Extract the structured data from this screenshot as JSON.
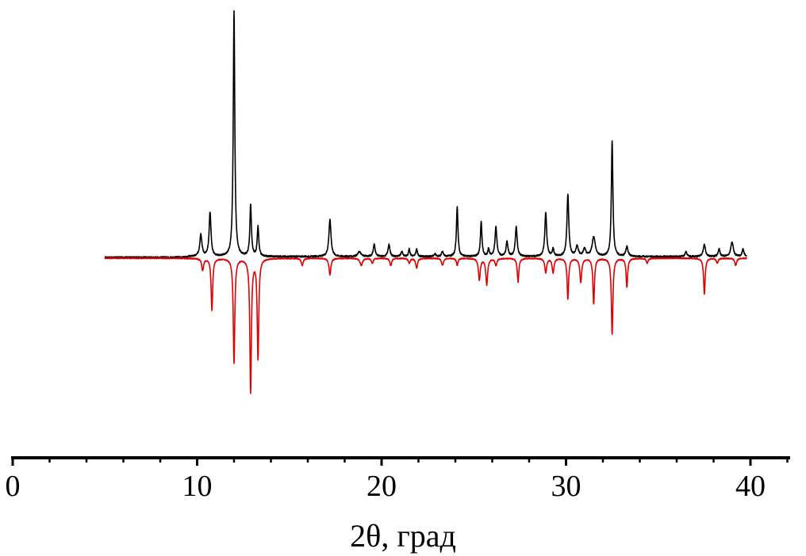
{
  "chart_data": {
    "type": "line",
    "title": "",
    "xlabel": "2θ, град",
    "ylabel": "",
    "xlim": [
      0,
      42
    ],
    "x_ticks_major": [
      0,
      10,
      20,
      30,
      40
    ],
    "x_tick_labels": [
      "0",
      "10",
      "20",
      "30",
      "40"
    ],
    "x_minor_step": 2,
    "grid": false,
    "legend": "none",
    "x_range_data": [
      5,
      39.8
    ],
    "series": [
      {
        "color": "#000000",
        "direction": "up",
        "baseline": 0.03,
        "peaks": [
          {
            "x": 10.2,
            "y": 0.09,
            "w": 0.07
          },
          {
            "x": 10.7,
            "y": 0.18,
            "w": 0.06
          },
          {
            "x": 12.0,
            "y": 1.0,
            "w": 0.05
          },
          {
            "x": 12.9,
            "y": 0.21,
            "w": 0.05
          },
          {
            "x": 13.3,
            "y": 0.12,
            "w": 0.05
          },
          {
            "x": 17.2,
            "y": 0.15,
            "w": 0.07
          },
          {
            "x": 18.8,
            "y": 0.02,
            "w": 0.1
          },
          {
            "x": 19.6,
            "y": 0.05,
            "w": 0.06
          },
          {
            "x": 20.4,
            "y": 0.05,
            "w": 0.06
          },
          {
            "x": 21.1,
            "y": 0.02,
            "w": 0.06
          },
          {
            "x": 21.5,
            "y": 0.03,
            "w": 0.05
          },
          {
            "x": 21.9,
            "y": 0.03,
            "w": 0.05
          },
          {
            "x": 22.9,
            "y": 0.01,
            "w": 0.06
          },
          {
            "x": 23.3,
            "y": 0.02,
            "w": 0.06
          },
          {
            "x": 24.1,
            "y": 0.2,
            "w": 0.05
          },
          {
            "x": 25.4,
            "y": 0.14,
            "w": 0.05
          },
          {
            "x": 25.8,
            "y": 0.03,
            "w": 0.05
          },
          {
            "x": 26.2,
            "y": 0.12,
            "w": 0.06
          },
          {
            "x": 26.8,
            "y": 0.06,
            "w": 0.06
          },
          {
            "x": 27.3,
            "y": 0.12,
            "w": 0.06
          },
          {
            "x": 28.9,
            "y": 0.18,
            "w": 0.06
          },
          {
            "x": 29.3,
            "y": 0.03,
            "w": 0.05
          },
          {
            "x": 30.1,
            "y": 0.25,
            "w": 0.06
          },
          {
            "x": 30.6,
            "y": 0.04,
            "w": 0.08
          },
          {
            "x": 31.0,
            "y": 0.03,
            "w": 0.08
          },
          {
            "x": 31.5,
            "y": 0.08,
            "w": 0.1
          },
          {
            "x": 32.5,
            "y": 0.47,
            "w": 0.05
          },
          {
            "x": 33.3,
            "y": 0.04,
            "w": 0.07
          },
          {
            "x": 36.5,
            "y": 0.02,
            "w": 0.06
          },
          {
            "x": 37.5,
            "y": 0.05,
            "w": 0.07
          },
          {
            "x": 38.3,
            "y": 0.03,
            "w": 0.06
          },
          {
            "x": 39.0,
            "y": 0.06,
            "w": 0.08
          },
          {
            "x": 39.6,
            "y": 0.03,
            "w": 0.06
          }
        ]
      },
      {
        "color": "#e00000",
        "direction": "down",
        "baseline": 0.0,
        "peaks": [
          {
            "x": 10.3,
            "y": 0.05,
            "w": 0.06
          },
          {
            "x": 10.8,
            "y": 0.22,
            "w": 0.05
          },
          {
            "x": 12.0,
            "y": 0.44,
            "w": 0.05
          },
          {
            "x": 12.9,
            "y": 0.56,
            "w": 0.05
          },
          {
            "x": 13.3,
            "y": 0.42,
            "w": 0.05
          },
          {
            "x": 15.7,
            "y": 0.03,
            "w": 0.06
          },
          {
            "x": 17.2,
            "y": 0.07,
            "w": 0.06
          },
          {
            "x": 18.9,
            "y": 0.03,
            "w": 0.08
          },
          {
            "x": 19.5,
            "y": 0.02,
            "w": 0.06
          },
          {
            "x": 20.5,
            "y": 0.03,
            "w": 0.06
          },
          {
            "x": 21.5,
            "y": 0.02,
            "w": 0.06
          },
          {
            "x": 21.9,
            "y": 0.04,
            "w": 0.06
          },
          {
            "x": 23.3,
            "y": 0.03,
            "w": 0.06
          },
          {
            "x": 24.1,
            "y": 0.03,
            "w": 0.05
          },
          {
            "x": 25.3,
            "y": 0.09,
            "w": 0.06
          },
          {
            "x": 25.7,
            "y": 0.11,
            "w": 0.06
          },
          {
            "x": 26.2,
            "y": 0.03,
            "w": 0.06
          },
          {
            "x": 27.4,
            "y": 0.1,
            "w": 0.05
          },
          {
            "x": 28.9,
            "y": 0.06,
            "w": 0.06
          },
          {
            "x": 29.3,
            "y": 0.06,
            "w": 0.06
          },
          {
            "x": 30.1,
            "y": 0.17,
            "w": 0.05
          },
          {
            "x": 30.8,
            "y": 0.1,
            "w": 0.06
          },
          {
            "x": 31.5,
            "y": 0.19,
            "w": 0.05
          },
          {
            "x": 32.5,
            "y": 0.32,
            "w": 0.05
          },
          {
            "x": 33.3,
            "y": 0.12,
            "w": 0.05
          },
          {
            "x": 34.4,
            "y": 0.02,
            "w": 0.06
          },
          {
            "x": 37.5,
            "y": 0.15,
            "w": 0.05
          },
          {
            "x": 38.2,
            "y": 0.02,
            "w": 0.06
          },
          {
            "x": 39.2,
            "y": 0.03,
            "w": 0.06
          }
        ]
      }
    ]
  }
}
